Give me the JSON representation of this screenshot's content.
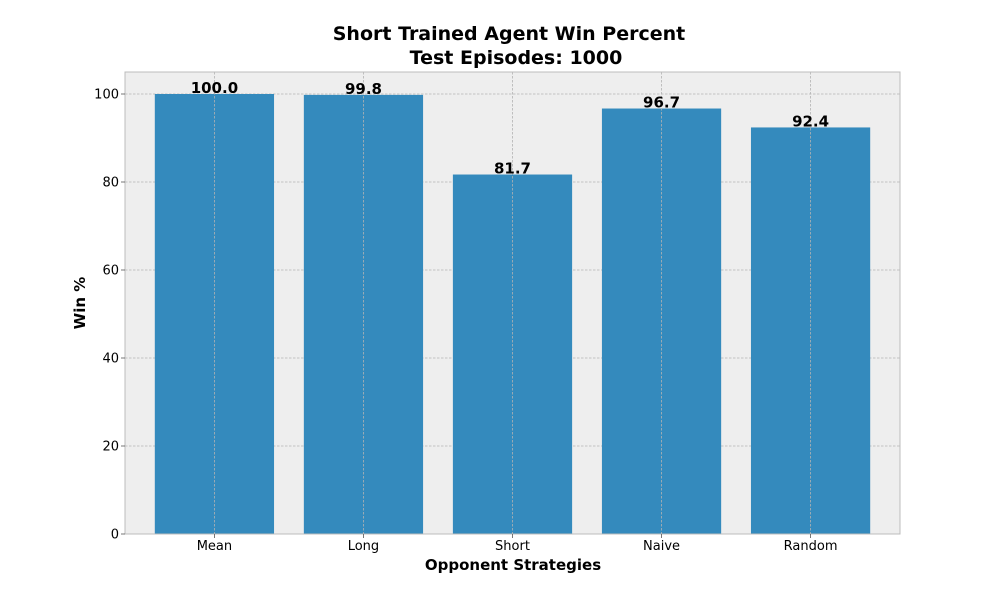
{
  "chart_data": {
    "type": "bar",
    "title": "Short Trained Agent Win Percent",
    "subtitle": "Test Episodes: 1000",
    "xlabel": "Opponent Strategies",
    "ylabel": "Win %",
    "categories": [
      "Mean",
      "Long",
      "Short",
      "Naive",
      "Random"
    ],
    "values": [
      100.0,
      99.8,
      81.7,
      96.7,
      92.4
    ],
    "data_labels": [
      "100.0",
      "99.8",
      "81.7",
      "96.7",
      "92.4"
    ],
    "yticks": [
      0,
      20,
      40,
      60,
      80,
      100
    ],
    "ylim": [
      0,
      105
    ],
    "grid": true,
    "legend": "none",
    "colors": {
      "bar": "#348abd",
      "plot_background": "#eeeeee",
      "grid": "#b2b2b2",
      "frame": "#bcbcbc"
    }
  }
}
